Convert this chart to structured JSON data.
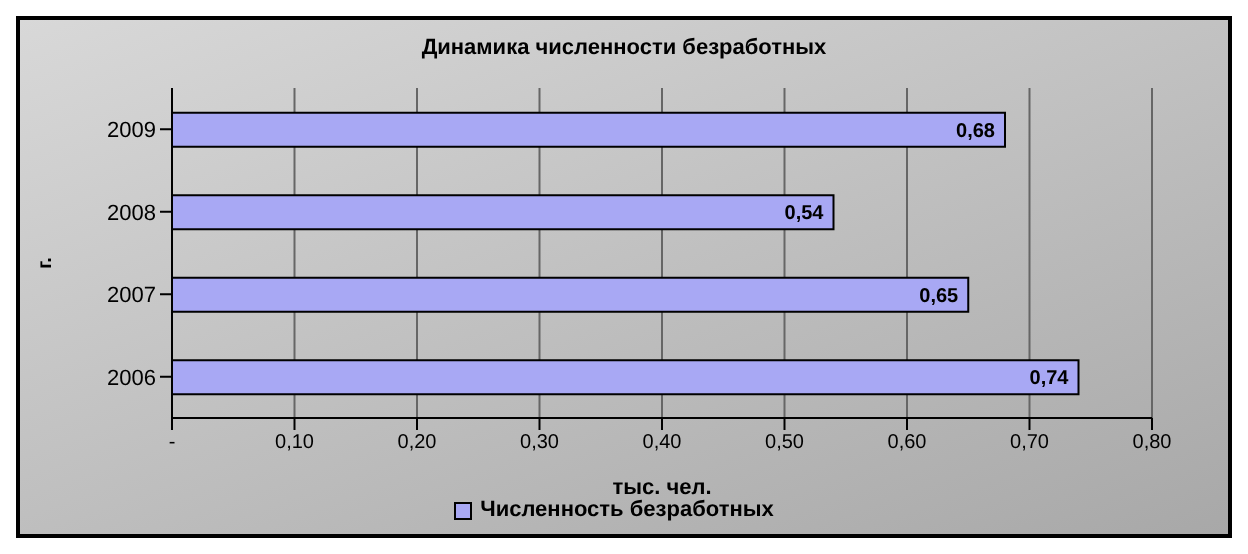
{
  "chart_data": {
    "type": "bar",
    "orientation": "horizontal",
    "title": "Динамика численности безработных",
    "xlabel": "тыс. чел.",
    "ylabel": "г.",
    "categories": [
      "2009",
      "2008",
      "2007",
      "2006"
    ],
    "series": [
      {
        "name": "Численность безработных",
        "color": "#a8a8f4",
        "values": [
          0.68,
          0.54,
          0.65,
          0.74
        ],
        "value_labels": [
          "0,68",
          "0,54",
          "0,65",
          "0,74"
        ]
      }
    ],
    "xlim": [
      0,
      0.8
    ],
    "xticks": [
      {
        "value": 0,
        "label": "-"
      },
      {
        "value": 0.1,
        "label": "0,10"
      },
      {
        "value": 0.2,
        "label": "0,20"
      },
      {
        "value": 0.3,
        "label": "0,30"
      },
      {
        "value": 0.4,
        "label": "0,40"
      },
      {
        "value": 0.5,
        "label": "0,50"
      },
      {
        "value": 0.6,
        "label": "0,60"
      },
      {
        "value": 0.7,
        "label": "0,70"
      },
      {
        "value": 0.8,
        "label": "0,80"
      }
    ],
    "grid": "x",
    "legend": "bottom"
  }
}
